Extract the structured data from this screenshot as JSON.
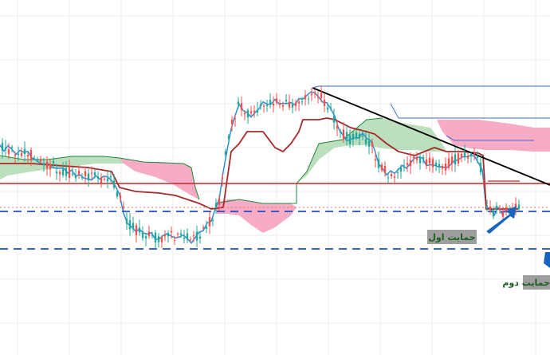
{
  "chart_data": {
    "type": "candlestick",
    "title": "",
    "xlabel": "",
    "ylabel": "",
    "grid": true,
    "ylim": [
      0,
      445
    ],
    "indicator": "ichimoku",
    "colors": {
      "up": "#26a69a",
      "down": "#ef5350",
      "tenkan": "#2b8fd6",
      "kijun": "#a52a2a",
      "senkou_b": "#1f8a3a",
      "cloud_bull": "#a5d6a7",
      "cloud_bear": "#f48fb1",
      "trendline": "#000000",
      "support": "#1e4fc2",
      "resistance_line": "#c62828",
      "arrow": "#1565c0"
    },
    "annotations": {
      "support1_label": "حمایت اول",
      "support2_label": "حمایت دوم"
    },
    "levels": {
      "support1": 265,
      "support2": 312,
      "resistance": 230
    }
  }
}
